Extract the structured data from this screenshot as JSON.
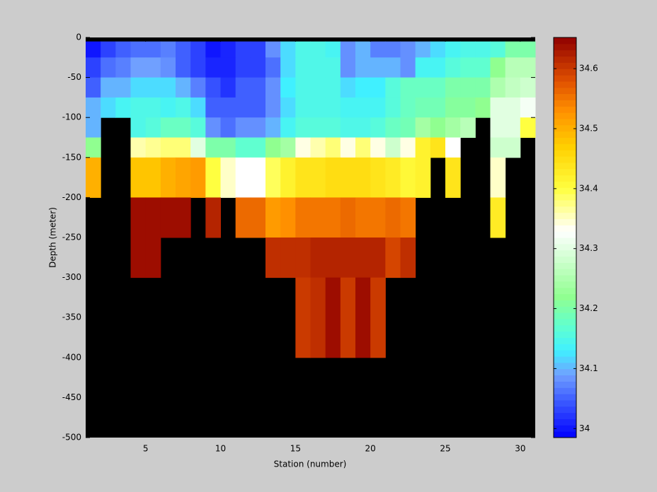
{
  "chart_data": {
    "type": "heatmap",
    "x_label": "Station (number)",
    "y_label": "Depth (meter)",
    "xlim": [
      1,
      31
    ],
    "ylim": [
      -500,
      0
    ],
    "xticks": [
      5,
      10,
      15,
      20,
      25,
      30
    ],
    "yticks": [
      -500,
      -450,
      -400,
      -350,
      -300,
      -250,
      -200,
      -150,
      -100,
      -50,
      0
    ],
    "x_edges": [
      1,
      2,
      3,
      4,
      5,
      6,
      7,
      8,
      9,
      10,
      11,
      12,
      13,
      14,
      15,
      16,
      17,
      18,
      19,
      20,
      21,
      22,
      23,
      24,
      25,
      26,
      27,
      28,
      29,
      30,
      31
    ],
    "y_edges": [
      -5,
      -25,
      -50,
      -75,
      -100,
      -125,
      -150,
      -200,
      -250,
      -300,
      -400
    ],
    "missing_color": "#000000",
    "clim": [
      33.985,
      34.652
    ],
    "cticks": [
      34,
      34.1,
      34.2,
      34.3,
      34.4,
      34.5,
      34.6
    ],
    "colormap": [
      [
        33.985,
        "#0000ff"
      ],
      [
        34.05,
        "#4060ff"
      ],
      [
        34.09,
        "#70a0ff"
      ],
      [
        34.13,
        "#40f0ff"
      ],
      [
        34.17,
        "#60ffd0"
      ],
      [
        34.22,
        "#90ff90"
      ],
      [
        34.33,
        "#ffffff"
      ],
      [
        34.4,
        "#ffff40"
      ],
      [
        34.47,
        "#ffd000"
      ],
      [
        34.53,
        "#ff9000"
      ],
      [
        34.58,
        "#e05000"
      ],
      [
        34.652,
        "#900000"
      ]
    ],
    "z": [
      [
        34.0,
        34.03,
        34.05,
        34.06,
        34.06,
        34.07,
        34.05,
        34.03,
        34.0,
        34.01,
        34.03,
        34.03,
        34.08,
        34.12,
        34.15,
        34.15,
        34.14,
        34.08,
        34.1,
        34.07,
        34.07,
        34.08,
        34.1,
        34.12,
        34.14,
        34.15,
        34.15,
        34.16,
        34.2,
        34.2
      ],
      [
        34.03,
        34.06,
        34.07,
        34.09,
        34.09,
        34.08,
        34.05,
        34.03,
        34.01,
        34.01,
        34.03,
        34.03,
        34.06,
        34.12,
        34.15,
        34.15,
        34.15,
        34.08,
        34.1,
        34.1,
        34.1,
        34.08,
        34.14,
        34.14,
        34.16,
        34.17,
        34.17,
        34.22,
        34.26,
        34.26
      ],
      [
        34.05,
        34.1,
        34.1,
        34.12,
        34.12,
        34.12,
        34.1,
        34.07,
        34.04,
        34.02,
        34.05,
        34.05,
        34.08,
        34.13,
        34.15,
        34.15,
        34.15,
        34.12,
        34.13,
        34.13,
        34.16,
        34.18,
        34.18,
        34.18,
        34.2,
        34.2,
        34.2,
        34.25,
        34.27,
        34.28
      ],
      [
        34.1,
        34.12,
        34.14,
        34.15,
        34.15,
        34.14,
        34.15,
        34.12,
        34.05,
        34.05,
        34.05,
        34.05,
        34.08,
        34.12,
        34.15,
        34.15,
        34.15,
        34.14,
        34.14,
        34.14,
        34.16,
        34.18,
        34.19,
        34.19,
        34.21,
        34.21,
        34.22,
        34.3,
        34.3,
        34.32
      ],
      [
        34.1,
        null,
        null,
        34.15,
        34.16,
        34.18,
        34.18,
        34.16,
        34.08,
        34.06,
        34.08,
        34.08,
        34.1,
        34.14,
        34.16,
        34.16,
        34.16,
        34.15,
        34.15,
        34.16,
        34.18,
        34.19,
        34.24,
        34.22,
        34.24,
        34.26,
        null,
        34.3,
        34.3,
        34.4
      ],
      [
        34.22,
        null,
        null,
        34.36,
        34.37,
        34.38,
        34.38,
        34.3,
        34.2,
        34.2,
        34.17,
        34.17,
        34.22,
        34.24,
        34.34,
        34.36,
        34.38,
        34.34,
        34.38,
        34.34,
        34.28,
        34.34,
        34.42,
        34.44,
        34.33,
        null,
        null,
        34.28,
        34.28,
        null
      ],
      [
        34.5,
        null,
        null,
        34.48,
        34.48,
        34.5,
        34.51,
        34.52,
        34.4,
        34.35,
        34.33,
        34.33,
        34.39,
        34.42,
        34.44,
        34.44,
        34.45,
        34.45,
        34.45,
        34.44,
        34.43,
        34.41,
        34.42,
        null,
        34.44,
        null,
        null,
        34.35,
        null,
        null
      ],
      [
        null,
        null,
        null,
        34.64,
        34.64,
        34.64,
        34.64,
        null,
        34.62,
        null,
        34.56,
        34.56,
        34.52,
        34.53,
        34.55,
        34.55,
        34.55,
        34.56,
        34.55,
        34.55,
        34.56,
        34.55,
        null,
        null,
        null,
        null,
        null,
        34.43,
        null,
        null
      ],
      [
        null,
        null,
        null,
        34.64,
        34.64,
        null,
        null,
        null,
        null,
        null,
        null,
        null,
        34.61,
        34.61,
        34.61,
        34.62,
        34.62,
        34.62,
        34.62,
        34.62,
        34.59,
        34.61,
        null,
        null,
        null,
        null,
        null,
        null,
        null,
        null
      ],
      [
        null,
        null,
        null,
        null,
        null,
        null,
        null,
        null,
        null,
        null,
        null,
        null,
        null,
        null,
        34.6,
        34.61,
        34.64,
        34.6,
        34.64,
        34.6,
        null,
        null,
        null,
        null,
        null,
        null,
        null,
        null,
        null,
        null
      ]
    ]
  }
}
